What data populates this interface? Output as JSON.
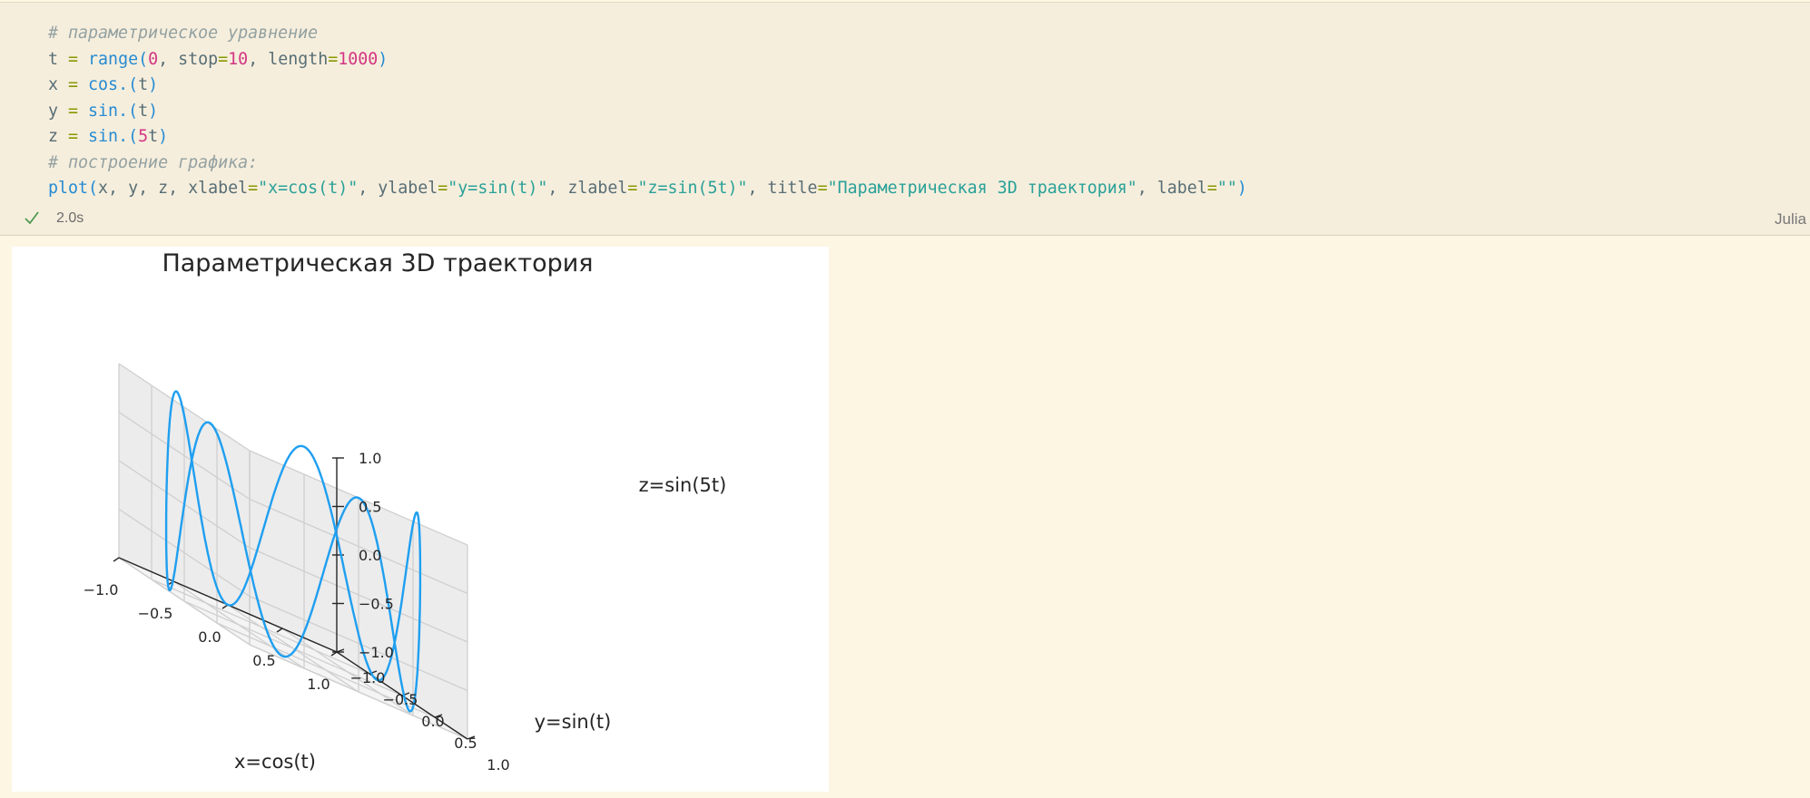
{
  "code_cell": {
    "lines": [
      [
        {
          "t": "# параметрическое уравнение",
          "c": "comment"
        }
      ],
      [
        {
          "t": "t ",
          "c": "plain"
        },
        {
          "t": "=",
          "c": "kw"
        },
        {
          "t": " ",
          "c": "plain"
        },
        {
          "t": "range",
          "c": "func"
        },
        {
          "t": "(",
          "c": "paren"
        },
        {
          "t": "0",
          "c": "num"
        },
        {
          "t": ", stop",
          "c": "plain"
        },
        {
          "t": "=",
          "c": "kw"
        },
        {
          "t": "10",
          "c": "num"
        },
        {
          "t": ", length",
          "c": "plain"
        },
        {
          "t": "=",
          "c": "kw"
        },
        {
          "t": "1000",
          "c": "num"
        },
        {
          "t": ")",
          "c": "paren"
        }
      ],
      [
        {
          "t": "x ",
          "c": "plain"
        },
        {
          "t": "=",
          "c": "kw"
        },
        {
          "t": " ",
          "c": "plain"
        },
        {
          "t": "cos.",
          "c": "func"
        },
        {
          "t": "(",
          "c": "paren"
        },
        {
          "t": "t",
          "c": "plain"
        },
        {
          "t": ")",
          "c": "paren"
        }
      ],
      [
        {
          "t": "y ",
          "c": "plain"
        },
        {
          "t": "=",
          "c": "kw"
        },
        {
          "t": " ",
          "c": "plain"
        },
        {
          "t": "sin.",
          "c": "func"
        },
        {
          "t": "(",
          "c": "paren"
        },
        {
          "t": "t",
          "c": "plain"
        },
        {
          "t": ")",
          "c": "paren"
        }
      ],
      [
        {
          "t": "z ",
          "c": "plain"
        },
        {
          "t": "=",
          "c": "kw"
        },
        {
          "t": " ",
          "c": "plain"
        },
        {
          "t": "sin.",
          "c": "func"
        },
        {
          "t": "(",
          "c": "paren"
        },
        {
          "t": "5",
          "c": "num"
        },
        {
          "t": "t",
          "c": "plain"
        },
        {
          "t": ")",
          "c": "paren"
        }
      ],
      [
        {
          "t": "# построение графика:",
          "c": "comment"
        }
      ],
      [
        {
          "t": "plot",
          "c": "func"
        },
        {
          "t": "(",
          "c": "paren"
        },
        {
          "t": "x, y, z, xlabel",
          "c": "plain"
        },
        {
          "t": "=",
          "c": "kw"
        },
        {
          "t": "\"x=cos(t)\"",
          "c": "str"
        },
        {
          "t": ", ylabel",
          "c": "plain"
        },
        {
          "t": "=",
          "c": "kw"
        },
        {
          "t": "\"y=sin(t)\"",
          "c": "str"
        },
        {
          "t": ", zlabel",
          "c": "plain"
        },
        {
          "t": "=",
          "c": "kw"
        },
        {
          "t": "\"z=sin(5t)\"",
          "c": "str"
        },
        {
          "t": ", title",
          "c": "plain"
        },
        {
          "t": "=",
          "c": "kw"
        },
        {
          "t": "\"Параметрическая 3D траектория\"",
          "c": "str"
        },
        {
          "t": ", label",
          "c": "plain"
        },
        {
          "t": "=",
          "c": "kw"
        },
        {
          "t": "\"\"",
          "c": "str"
        },
        {
          "t": ")",
          "c": "paren"
        }
      ]
    ]
  },
  "status": {
    "icon": "check-icon",
    "exec_time": "2.0s",
    "language": "Julia"
  },
  "output": {
    "chart_data": {
      "type": "line3d",
      "title": "Параметрическая 3D траектория",
      "xlabel": "x=cos(t)",
      "ylabel": "y=sin(t)",
      "zlabel": "z=sin(5t)",
      "parametric": {
        "t_start": 0,
        "t_stop": 10,
        "length": 1000,
        "x": "cos(t)",
        "y": "sin(t)",
        "z": "sin(5t)"
      },
      "xlim": [
        -1.0,
        1.0
      ],
      "ylim": [
        -1.0,
        1.0
      ],
      "zlim": [
        -1.0,
        1.0
      ],
      "x_ticks": [
        "−1.0",
        "−0.5",
        "0.0",
        "0.5",
        "1.0"
      ],
      "y_ticks": [
        "−1.0",
        "−0.5",
        "0.0",
        "0.5",
        "1.0"
      ],
      "z_ticks": [
        "−1.0",
        "−0.5",
        "0.0",
        "0.5",
        "1.0"
      ],
      "line_color": "#1f9ff0",
      "grid": true,
      "legend": false
    }
  },
  "colors": {
    "notebook_bg": "#fdf6e3",
    "cell_bg": "#f6eedd",
    "check": "#4e9a4e"
  }
}
